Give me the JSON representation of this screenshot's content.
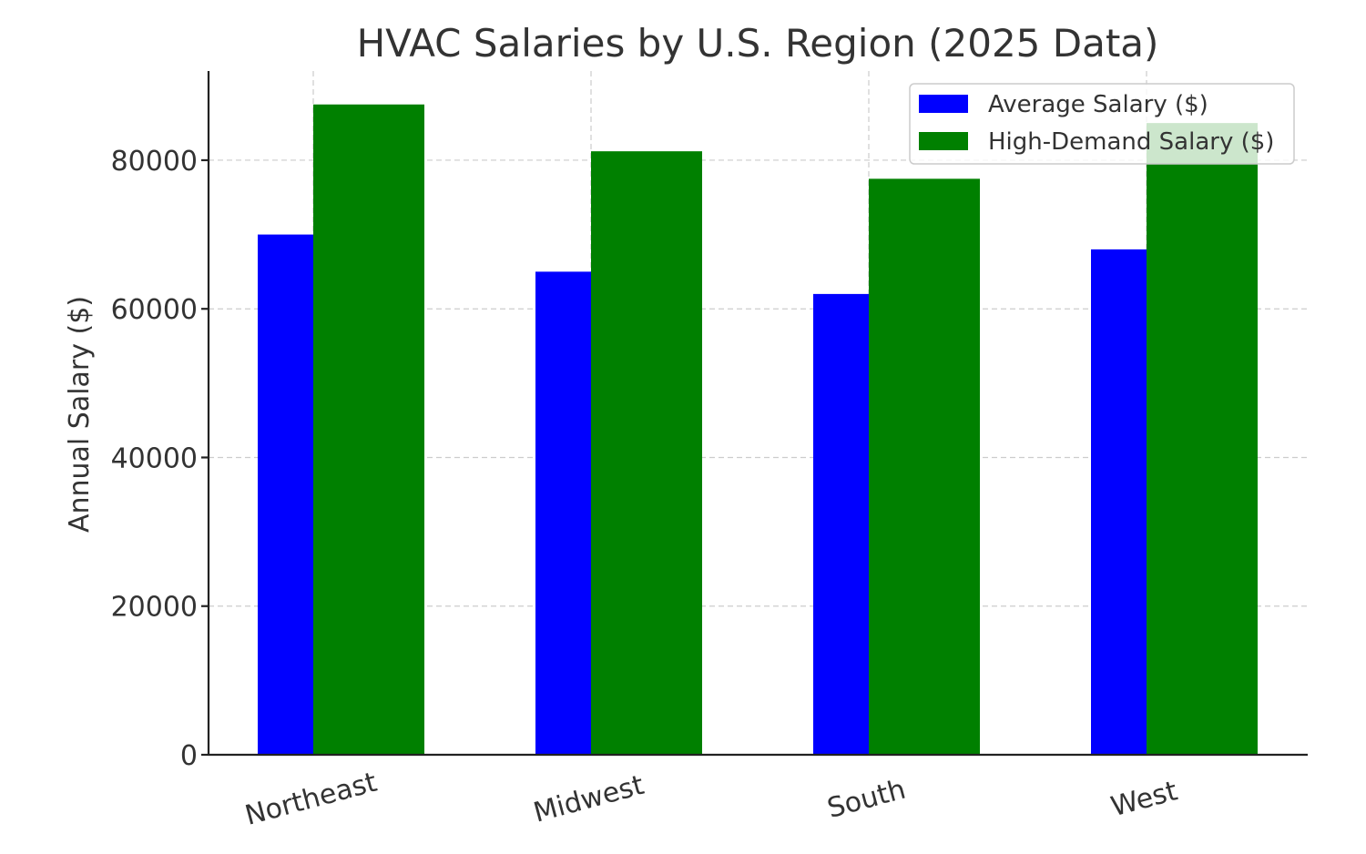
{
  "chart_data": {
    "type": "bar",
    "title": "HVAC Salaries by U.S. Region (2025 Data)",
    "xlabel": "",
    "ylabel": "Annual Salary ($)",
    "categories": [
      "Northeast",
      "Midwest",
      "South",
      "West"
    ],
    "series": [
      {
        "name": "Average Salary ($)",
        "values": [
          70000,
          65000,
          62000,
          68000
        ],
        "color": "#0000ff"
      },
      {
        "name": "High-Demand Salary ($)",
        "values": [
          87500,
          81200,
          77500,
          85000
        ],
        "color": "#008000"
      }
    ],
    "ylim": [
      0,
      92000
    ],
    "yticks": [
      0,
      20000,
      40000,
      60000,
      80000
    ],
    "grid": true,
    "legend_position": "top-right",
    "xtick_rotation": "rotated"
  }
}
